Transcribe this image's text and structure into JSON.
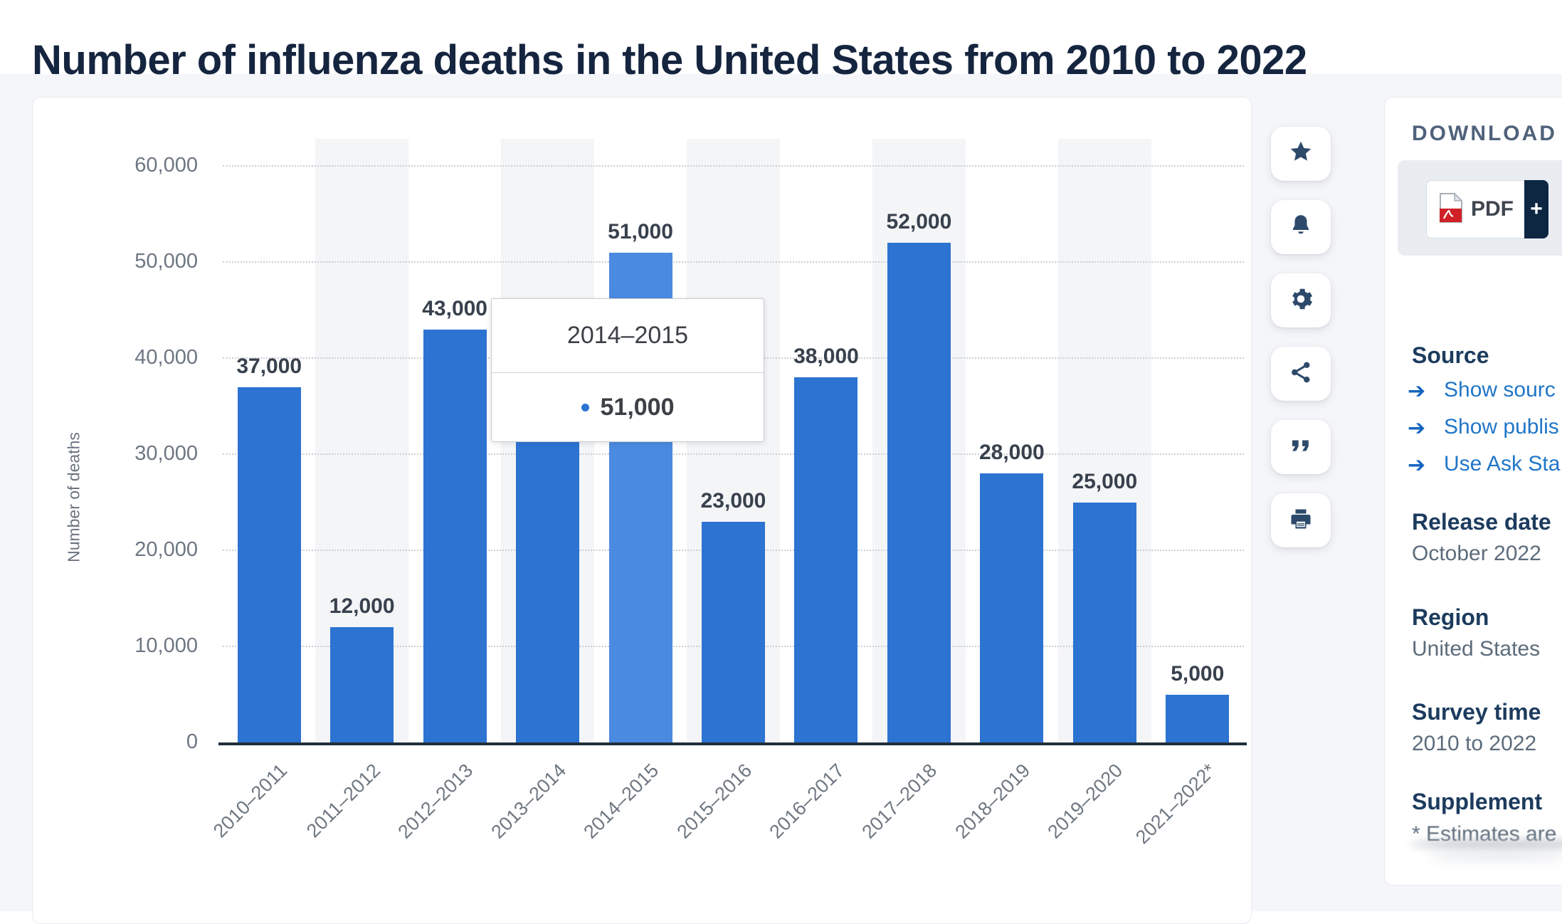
{
  "title": "Number of influenza deaths in the United States from 2010 to 2022",
  "chart": {
    "y_axis_title": "Number of deaths",
    "tooltip": {
      "title": "2014–2015",
      "value": "51,000"
    }
  },
  "chart_data": {
    "type": "bar",
    "title": "Number of influenza deaths in the United States from 2010 to 2022",
    "categories": [
      "2010–2011",
      "2011–2012",
      "2012–2013",
      "2013–2014",
      "2014–2015",
      "2015–2016",
      "2016–2017",
      "2017–2018",
      "2018–2019",
      "2019–2020",
      "2021–2022*"
    ],
    "values": [
      37000,
      12000,
      43000,
      38000,
      51000,
      23000,
      38000,
      52000,
      28000,
      25000,
      5000
    ],
    "bar_labels": [
      "37,000",
      "12,000",
      "43,000",
      "",
      "51,000",
      "23,000",
      "38,000",
      "52,000",
      "28,000",
      "25,000",
      "5,000"
    ],
    "hidden_label_index": 3,
    "highlighted_index": 4,
    "xlabel": "",
    "ylabel": "Number of deaths",
    "ylim": [
      0,
      60000
    ],
    "yticks": [
      0,
      10000,
      20000,
      30000,
      40000,
      50000,
      60000
    ],
    "ytick_labels": [
      "0",
      "10,000",
      "20,000",
      "30,000",
      "40,000",
      "50,000",
      "60,000"
    ],
    "grid": "horizontal dotted",
    "legend": "none",
    "bar_color": "#2c73d2",
    "highlight_color": "#4a8ae0",
    "tooltip": {
      "category": "2014–2015",
      "value": "51,000"
    }
  },
  "toolbar": {
    "buttons": [
      "favorite",
      "alerts",
      "settings",
      "share",
      "citation",
      "print"
    ]
  },
  "panel": {
    "download_label": "DOWNLOAD",
    "pdf_label": "PDF",
    "plus_label": "+",
    "source_heading": "Source",
    "links": [
      {
        "label": "Show sourc"
      },
      {
        "label": "Show publis"
      },
      {
        "label": "Use Ask Sta"
      }
    ],
    "release_date_heading": "Release date",
    "release_date": "October 2022",
    "region_heading": "Region",
    "region": "United States",
    "survey_heading": "Survey time",
    "survey": "2010 to 2022",
    "supplement_heading": "Supplement",
    "supplement_note": "* Estimates are"
  },
  "colors": {
    "bar": "#2c73d2",
    "bar_highlight": "#4a8ae0",
    "title_text": "#15253f",
    "heading_text": "#1c3b5e",
    "body_text": "#5d6c7b",
    "link": "#2176c7",
    "toolbar_icon": "#2d4a6b",
    "plus_box": "#0d2742",
    "page_bg": "#f5f6f9"
  }
}
